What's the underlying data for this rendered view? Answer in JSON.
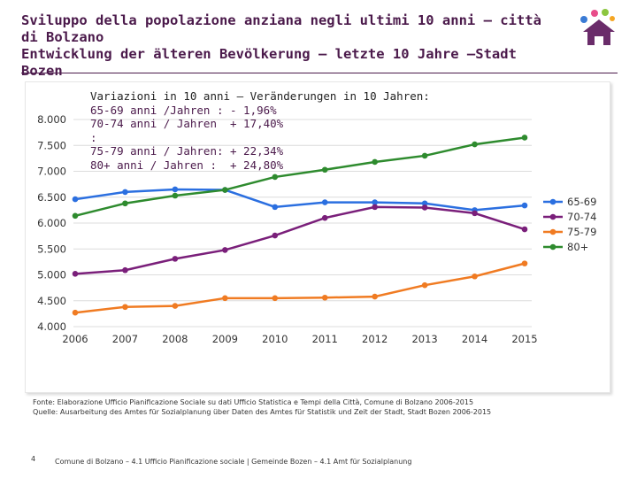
{
  "slide": {
    "title_it": "Sviluppo della popolazione anziana negli ultimi 10 anni – città di Bolzano",
    "title_de": "Entwicklung der älteren Bevölkerung – letzte 10 Jahre –Stadt Bozen",
    "page_number": "4",
    "footer": "Comune di Bolzano – 4.1 Ufficio Pianificazione sociale | Gemeinde Bozen – 4.1 Amt für Sozialplanung",
    "source_it": "Fonte: Elaborazione Ufficio Pianificazione Sociale su dati Ufficio Statistica e Tempi della Città, Comune di Bolzano 2006-2015",
    "source_de": "Quelle: Ausarbeitung des Amtes für Sozialplanung über Daten des Amtes für Statistik und Zeit der Stadt, Stadt Bozen 2006-2015"
  },
  "variations": {
    "header": "Variazioni in 10 anni – Veränderungen in 10 Jahren:",
    "rows": [
      {
        "label": "65-69 anni /Jahren :",
        "value": "- 1,96%"
      },
      {
        "label": "70-74 anni / Jahren :",
        "value": "+ 17,40%"
      },
      {
        "label": "75-79 anni / Jahren:",
        "value": "+ 22,34%"
      },
      {
        "label": "80+ anni / Jahren :",
        "value": "+ 24,80%"
      }
    ]
  },
  "colors": {
    "title": "#4b1a4b",
    "s6569": "#2b6fe0",
    "s7074": "#7a1f7a",
    "s7579": "#f07b22",
    "s80": "#2e8b2e",
    "grid": "#dcdcdc"
  },
  "chart_data": {
    "type": "line",
    "title": "",
    "xlabel": "",
    "ylabel": "",
    "categories": [
      "2006",
      "2007",
      "2008",
      "2009",
      "2010",
      "2011",
      "2012",
      "2013",
      "2014",
      "2015"
    ],
    "ylim": [
      4000,
      8000
    ],
    "yticks": [
      4000,
      4500,
      5000,
      5500,
      6000,
      6500,
      7000,
      7500,
      8000
    ],
    "ytick_labels": [
      "4.000",
      "4.500",
      "5.000",
      "5.500",
      "6.000",
      "6.500",
      "7.000",
      "7.500",
      "8.000"
    ],
    "legend_position": "right",
    "series": [
      {
        "name": "65-69",
        "color": "#2b6fe0",
        "values": [
          6460,
          6600,
          6650,
          6640,
          6310,
          6400,
          6400,
          6380,
          6250,
          6340
        ]
      },
      {
        "name": "70-74",
        "color": "#7a1f7a",
        "values": [
          5020,
          5090,
          5310,
          5480,
          5760,
          6100,
          6310,
          6300,
          6190,
          5880
        ]
      },
      {
        "name": "75-79",
        "color": "#f07b22",
        "values": [
          4270,
          4380,
          4400,
          4550,
          4550,
          4560,
          4580,
          4800,
          4970,
          5220
        ]
      },
      {
        "name": "80+",
        "color": "#2e8b2e",
        "values": [
          6140,
          6380,
          6530,
          6640,
          6890,
          7030,
          7180,
          7300,
          7520,
          7650
        ]
      }
    ]
  }
}
